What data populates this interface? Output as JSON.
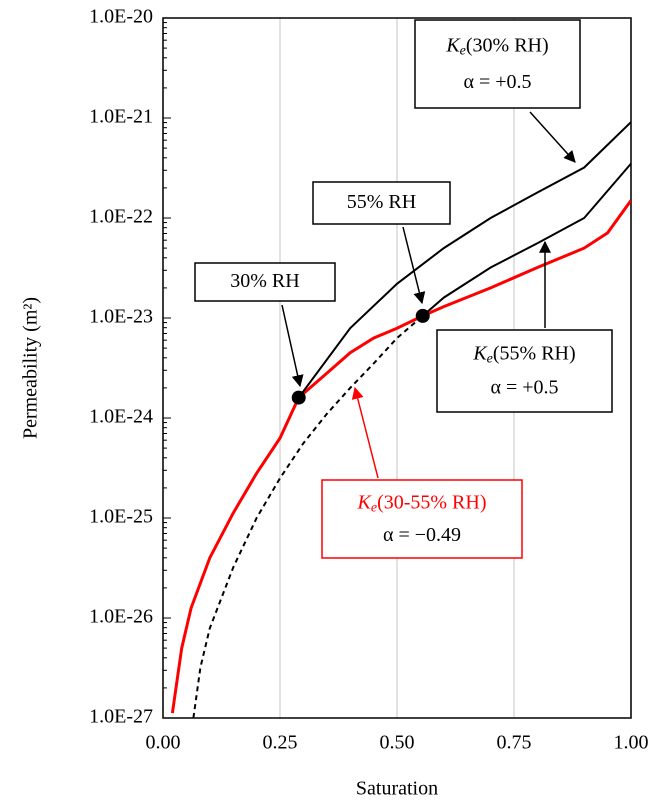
{
  "chart_data": {
    "type": "line",
    "log_y": true,
    "grid": true,
    "xlabel": "Saturation",
    "ylabel": "Permeability (m²)",
    "xlim": [
      0,
      1
    ],
    "ylim": [
      1e-27,
      1e-20
    ],
    "xticks": [
      {
        "value": 0,
        "label": "0.00"
      },
      {
        "value": 0.25,
        "label": "0.25"
      },
      {
        "value": 0.5,
        "label": "0.50"
      },
      {
        "value": 0.75,
        "label": "0.75"
      },
      {
        "value": 1,
        "label": "1.00"
      }
    ],
    "yticks": [
      {
        "value": 1e-27,
        "label": "1.0E-27"
      },
      {
        "value": 1e-26,
        "label": "1.0E-26"
      },
      {
        "value": 1e-25,
        "label": "1.0E-25"
      },
      {
        "value": 1e-24,
        "label": "1.0E-24"
      },
      {
        "value": 1e-23,
        "label": "1.0E-23"
      },
      {
        "value": 1e-22,
        "label": "1.0E-22"
      },
      {
        "value": 1e-21,
        "label": "1.0E-21"
      },
      {
        "value": 1e-20,
        "label": "1.0E-20"
      }
    ],
    "series": [
      {
        "color": "#ff0000",
        "dash": false,
        "x": [
          0.02,
          0.04,
          0.06,
          0.1,
          0.15,
          0.2,
          0.25,
          0.29,
          0.35,
          0.4,
          0.45,
          0.5,
          0.555,
          0.6,
          0.7,
          0.8,
          0.9,
          0.95,
          1.0
        ],
        "values": [
          1.12e-27,
          5e-27,
          1.26e-26,
          4e-26,
          1.12e-25,
          2.8e-25,
          6.3e-25,
          1.6e-24,
          2.8e-24,
          4.5e-24,
          6.3e-24,
          7.9e-24,
          1.05e-23,
          1.3e-23,
          2e-23,
          3.2e-23,
          5e-23,
          7.1e-23,
          1.5e-22
        ]
      },
      {
        "color": "#000000",
        "dash": false,
        "x": [
          0.29,
          0.4,
          0.5,
          0.6,
          0.7,
          0.8,
          0.9,
          1.0
        ],
        "values": [
          1.6e-24,
          7.9e-24,
          2.2e-23,
          5e-23,
          1e-22,
          1.8e-22,
          3.2e-22,
          9.1e-22
        ]
      },
      {
        "color": "#000000",
        "dash": false,
        "x": [
          0.555,
          0.6,
          0.7,
          0.8,
          0.9,
          1.0
        ],
        "values": [
          1.05e-23,
          1.6e-23,
          3.2e-23,
          5.6e-23,
          1e-22,
          3.5e-22
        ]
      },
      {
        "color": "#000000",
        "dash": true,
        "x": [
          0.065,
          0.08,
          0.1,
          0.15,
          0.2,
          0.25,
          0.3,
          0.35,
          0.4,
          0.45,
          0.5,
          0.555
        ],
        "values": [
          1e-27,
          3.2e-27,
          7.9e-27,
          3.2e-26,
          1e-25,
          2.5e-25,
          5.6e-25,
          1.1e-24,
          2e-24,
          3.5e-24,
          6.3e-24,
          1.05e-23
        ]
      }
    ],
    "points": {
      "color": "#000000",
      "x": [
        0.29,
        0.555
      ],
      "values": [
        1.6e-24,
        1.05e-23
      ]
    },
    "annotations": [
      {
        "text": "30% RH",
        "color": "#000000"
      },
      {
        "text": "55% RH",
        "color": "#000000"
      },
      {
        "symbol": "K",
        "sub": "e",
        "text": "(30% RH)",
        "alpha": "α = +0.5",
        "color": "#000000"
      },
      {
        "symbol": "K",
        "sub": "e",
        "text": "(55% RH)",
        "alpha": "α = +0.5",
        "color": "#000000"
      },
      {
        "symbol": "K",
        "sub": "e",
        "text": "(30-55% RH)",
        "alpha": "α = −0.49",
        "color": "#ff0000"
      }
    ]
  }
}
